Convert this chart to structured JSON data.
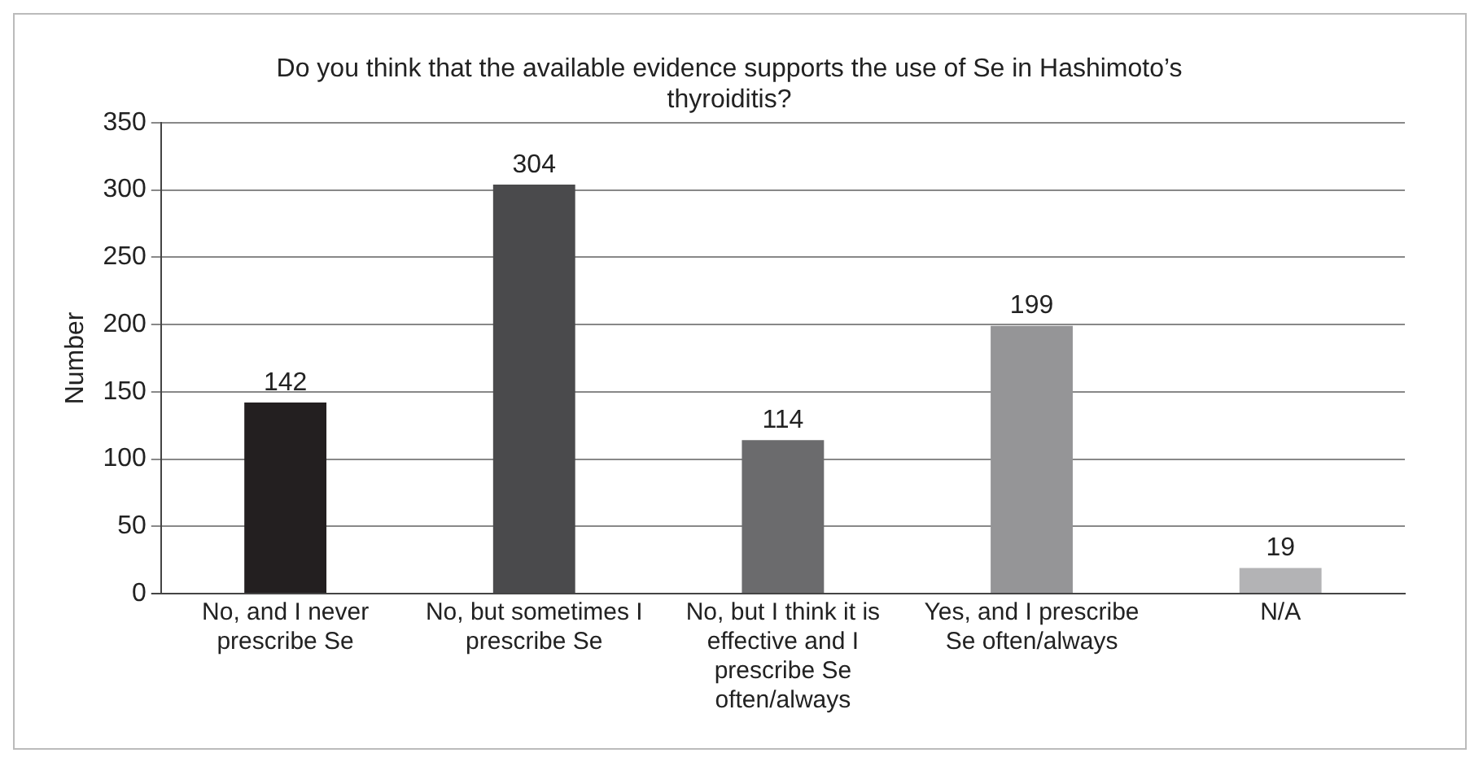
{
  "chart_data": {
    "type": "bar",
    "title": "Do you think that the available evidence supports the use of Se in Hashimoto’s thyroiditis?",
    "ylabel": "Number",
    "categories": [
      "No, and I never prescribe Se",
      "No, but sometimes I prescribe Se",
      "No, but I think it is effective and I prescribe Se often/always",
      "Yes, and I prescribe Se often/always",
      "N/A"
    ],
    "values": [
      142,
      304,
      114,
      199,
      19
    ],
    "colors": [
      "#231f20",
      "#4a4a4c",
      "#6b6b6d",
      "#959597",
      "#b3b3b5"
    ],
    "ylim": [
      0,
      350
    ],
    "yticks": [
      0,
      50,
      100,
      150,
      200,
      250,
      300,
      350
    ],
    "grid": "y",
    "data_labels": true,
    "legend": false
  }
}
